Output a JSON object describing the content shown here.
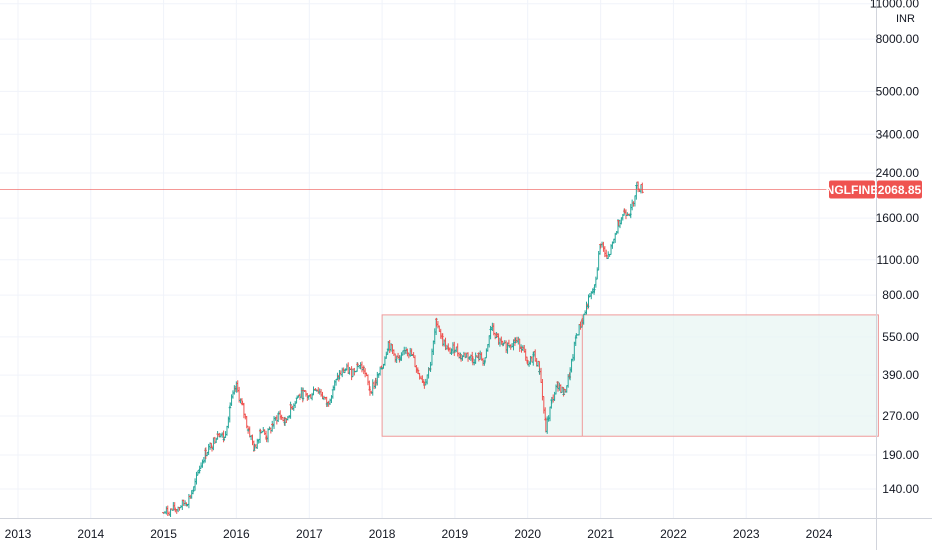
{
  "chart_data": {
    "type": "ohlc",
    "symbol": "NGLFINE",
    "currency": "INR",
    "last_price": 2068.85,
    "last_price_label": "2068.85",
    "scale": "log",
    "ylim": [
      110,
      11000
    ],
    "y_ticks": [
      11000,
      8000,
      5000,
      3400,
      2400,
      1600,
      1100,
      800,
      550,
      390,
      270,
      190,
      140
    ],
    "y_tick_labels": [
      "11000.00",
      "8000.00",
      "5000.00",
      "3400.00",
      "2400.00",
      "1600.00",
      "1100.00",
      "800.00",
      "550.00",
      "390.00",
      "270.00",
      "190.00",
      "140.00"
    ],
    "xlim": [
      "2012-10-01",
      "2024-12-15"
    ],
    "x_ticks": [
      "2013-01-01",
      "2014-01-01",
      "2015-01-01",
      "2016-01-01",
      "2017-01-01",
      "2018-01-01",
      "2019-01-01",
      "2020-01-01",
      "2021-01-01",
      "2022-01-01",
      "2023-01-01",
      "2024-01-01"
    ],
    "x_tick_labels": [
      "2013",
      "2014",
      "2015",
      "2016",
      "2017",
      "2018",
      "2019",
      "2020",
      "2021",
      "2022",
      "2023",
      "2024"
    ],
    "grid": true,
    "colors": {
      "up": "#26a69a",
      "down": "#ef5350",
      "price_line": "#ef5350",
      "box_fill": "#e8f5f3",
      "box_border": "#ef9a9a"
    },
    "annotations": [
      {
        "type": "rectangle",
        "x_start": "2018-01-01",
        "x_end": "2024-10-25",
        "y_low": 225,
        "y_high": 670
      },
      {
        "type": "vertical-line",
        "x": "2020-10-01",
        "y_low": 225,
        "y_high": 670
      }
    ],
    "price_path": [
      [
        "2015-01-01",
        113
      ],
      [
        "2015-03-01",
        117
      ],
      [
        "2015-05-01",
        126
      ],
      [
        "2015-06-01",
        140
      ],
      [
        "2015-07-01",
        170
      ],
      [
        "2015-08-01",
        195
      ],
      [
        "2015-09-01",
        210
      ],
      [
        "2015-10-01",
        235
      ],
      [
        "2015-11-01",
        220
      ],
      [
        "2015-12-01",
        300
      ],
      [
        "2016-01-01",
        350
      ],
      [
        "2016-02-01",
        290
      ],
      [
        "2016-03-01",
        240
      ],
      [
        "2016-04-01",
        200
      ],
      [
        "2016-05-01",
        240
      ],
      [
        "2016-06-01",
        225
      ],
      [
        "2016-07-01",
        250
      ],
      [
        "2016-08-01",
        275
      ],
      [
        "2016-09-01",
        255
      ],
      [
        "2016-10-01",
        290
      ],
      [
        "2016-11-01",
        320
      ],
      [
        "2016-12-01",
        330
      ],
      [
        "2017-01-01",
        320
      ],
      [
        "2017-02-01",
        350
      ],
      [
        "2017-03-01",
        330
      ],
      [
        "2017-04-01",
        300
      ],
      [
        "2017-05-01",
        350
      ],
      [
        "2017-06-01",
        390
      ],
      [
        "2017-07-01",
        410
      ],
      [
        "2017-08-01",
        400
      ],
      [
        "2017-09-01",
        430
      ],
      [
        "2017-10-01",
        410
      ],
      [
        "2017-11-01",
        340
      ],
      [
        "2017-12-01",
        370
      ],
      [
        "2018-01-01",
        420
      ],
      [
        "2018-02-01",
        520
      ],
      [
        "2018-03-01",
        470
      ],
      [
        "2018-04-01",
        440
      ],
      [
        "2018-05-01",
        500
      ],
      [
        "2018-06-01",
        460
      ],
      [
        "2018-07-01",
        400
      ],
      [
        "2018-08-01",
        365
      ],
      [
        "2018-09-01",
        430
      ],
      [
        "2018-10-01",
        640
      ],
      [
        "2018-11-01",
        530
      ],
      [
        "2018-12-01",
        480
      ],
      [
        "2019-01-01",
        500
      ],
      [
        "2019-02-01",
        460
      ],
      [
        "2019-03-01",
        470
      ],
      [
        "2019-04-01",
        450
      ],
      [
        "2019-05-01",
        460
      ],
      [
        "2019-06-01",
        440
      ],
      [
        "2019-07-01",
        600
      ],
      [
        "2019-08-01",
        540
      ],
      [
        "2019-09-01",
        500
      ],
      [
        "2019-10-01",
        520
      ],
      [
        "2019-11-01",
        530
      ],
      [
        "2019-12-01",
        510
      ],
      [
        "2020-01-01",
        420
      ],
      [
        "2020-02-01",
        470
      ],
      [
        "2020-03-01",
        410
      ],
      [
        "2020-04-01",
        240
      ],
      [
        "2020-05-01",
        310
      ],
      [
        "2020-06-01",
        360
      ],
      [
        "2020-07-01",
        330
      ],
      [
        "2020-08-01",
        400
      ],
      [
        "2020-09-01",
        560
      ],
      [
        "2020-10-01",
        640
      ],
      [
        "2020-11-01",
        760
      ],
      [
        "2020-12-01",
        850
      ],
      [
        "2021-01-01",
        1300
      ],
      [
        "2021-02-01",
        1100
      ],
      [
        "2021-03-01",
        1250
      ],
      [
        "2021-04-01",
        1550
      ],
      [
        "2021-05-01",
        1700
      ],
      [
        "2021-06-01",
        1700
      ],
      [
        "2021-07-01",
        2150
      ],
      [
        "2021-08-01",
        2068.85
      ]
    ]
  }
}
